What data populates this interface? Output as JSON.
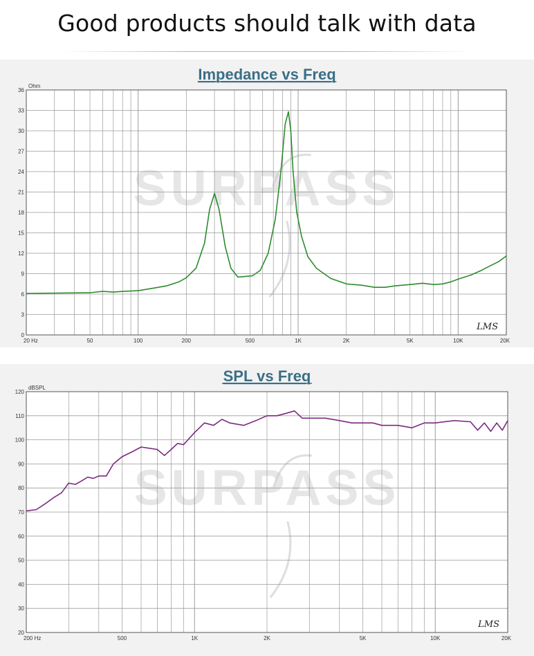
{
  "banner": {
    "title": "Good products should talk with data"
  },
  "watermark": "SURPASS",
  "chart_data": [
    {
      "type": "line",
      "title": "Impedance vs Freq",
      "ylabel": "Ohm",
      "xscale": "log",
      "xlim": [
        20,
        20000
      ],
      "ylim": [
        0,
        36
      ],
      "grid": true,
      "x_tick_labels": [
        "20 Hz",
        "50",
        "100",
        "200",
        "500",
        "1K",
        "2K",
        "5K",
        "10K",
        "20K"
      ],
      "x_tick_values": [
        20,
        50,
        100,
        200,
        500,
        1000,
        2000,
        5000,
        10000,
        20000
      ],
      "y_tick_values": [
        0,
        3,
        6,
        9,
        12,
        15,
        18,
        21,
        24,
        27,
        30,
        33,
        36
      ],
      "annotation": "LMS",
      "series": [
        {
          "color": "#2e8b2e",
          "x": [
            20,
            50,
            60,
            70,
            80,
            100,
            120,
            150,
            180,
            200,
            230,
            260,
            280,
            300,
            320,
            350,
            380,
            420,
            470,
            520,
            580,
            650,
            720,
            780,
            830,
            870,
            900,
            930,
            980,
            1050,
            1150,
            1300,
            1600,
            2000,
            2500,
            3000,
            3500,
            4000,
            5000,
            6000,
            7000,
            8000,
            9000,
            10000,
            12000,
            14000,
            16000,
            18000,
            20000
          ],
          "y": [
            6.1,
            6.2,
            6.4,
            6.3,
            6.4,
            6.5,
            6.8,
            7.2,
            7.8,
            8.4,
            9.8,
            13.5,
            18.5,
            20.8,
            18.5,
            13,
            9.8,
            8.5,
            8.6,
            8.7,
            9.5,
            12,
            17,
            24,
            31,
            32.8,
            30,
            24,
            18,
            14.5,
            11.5,
            9.8,
            8.3,
            7.5,
            7.3,
            7.0,
            7.0,
            7.2,
            7.4,
            7.6,
            7.4,
            7.5,
            7.8,
            8.2,
            8.8,
            9.5,
            10.2,
            10.8,
            11.6
          ]
        }
      ]
    },
    {
      "type": "line",
      "title": "SPL vs Freq",
      "ylabel": "dBSPL",
      "xscale": "log",
      "xlim": [
        200,
        20000
      ],
      "ylim": [
        20,
        120
      ],
      "grid": true,
      "x_tick_labels": [
        "200 Hz",
        "500",
        "1K",
        "2K",
        "5K",
        "10K",
        "20K"
      ],
      "x_tick_values": [
        200,
        500,
        1000,
        2000,
        5000,
        10000,
        20000
      ],
      "y_tick_values": [
        20,
        30,
        40,
        50,
        60,
        70,
        80,
        90,
        100,
        110,
        120
      ],
      "annotation": "LMS",
      "series": [
        {
          "color": "#7b2b7e",
          "x": [
            200,
            220,
            240,
            260,
            280,
            300,
            320,
            340,
            360,
            380,
            400,
            430,
            460,
            500,
            550,
            600,
            650,
            700,
            750,
            800,
            850,
            900,
            1000,
            1100,
            1200,
            1300,
            1400,
            1600,
            1800,
            2000,
            2200,
            2400,
            2600,
            2800,
            3000,
            3500,
            4000,
            4500,
            5000,
            5500,
            6000,
            7000,
            8000,
            9000,
            10000,
            12000,
            14000,
            15000,
            16000,
            17000,
            18000,
            19000,
            20000
          ],
          "y": [
            70.5,
            71,
            73.5,
            76,
            78,
            82,
            81.5,
            83,
            84.5,
            84,
            85,
            85,
            90,
            93,
            95,
            97,
            96.5,
            96,
            93.5,
            96,
            98.5,
            98,
            103,
            107,
            106,
            108.5,
            107,
            106,
            108,
            110,
            110,
            111,
            112,
            109,
            109,
            109,
            108,
            107,
            107,
            107,
            106,
            106,
            105,
            107,
            107,
            108,
            107.5,
            104,
            107,
            103.5,
            107,
            104,
            108
          ]
        }
      ]
    }
  ]
}
